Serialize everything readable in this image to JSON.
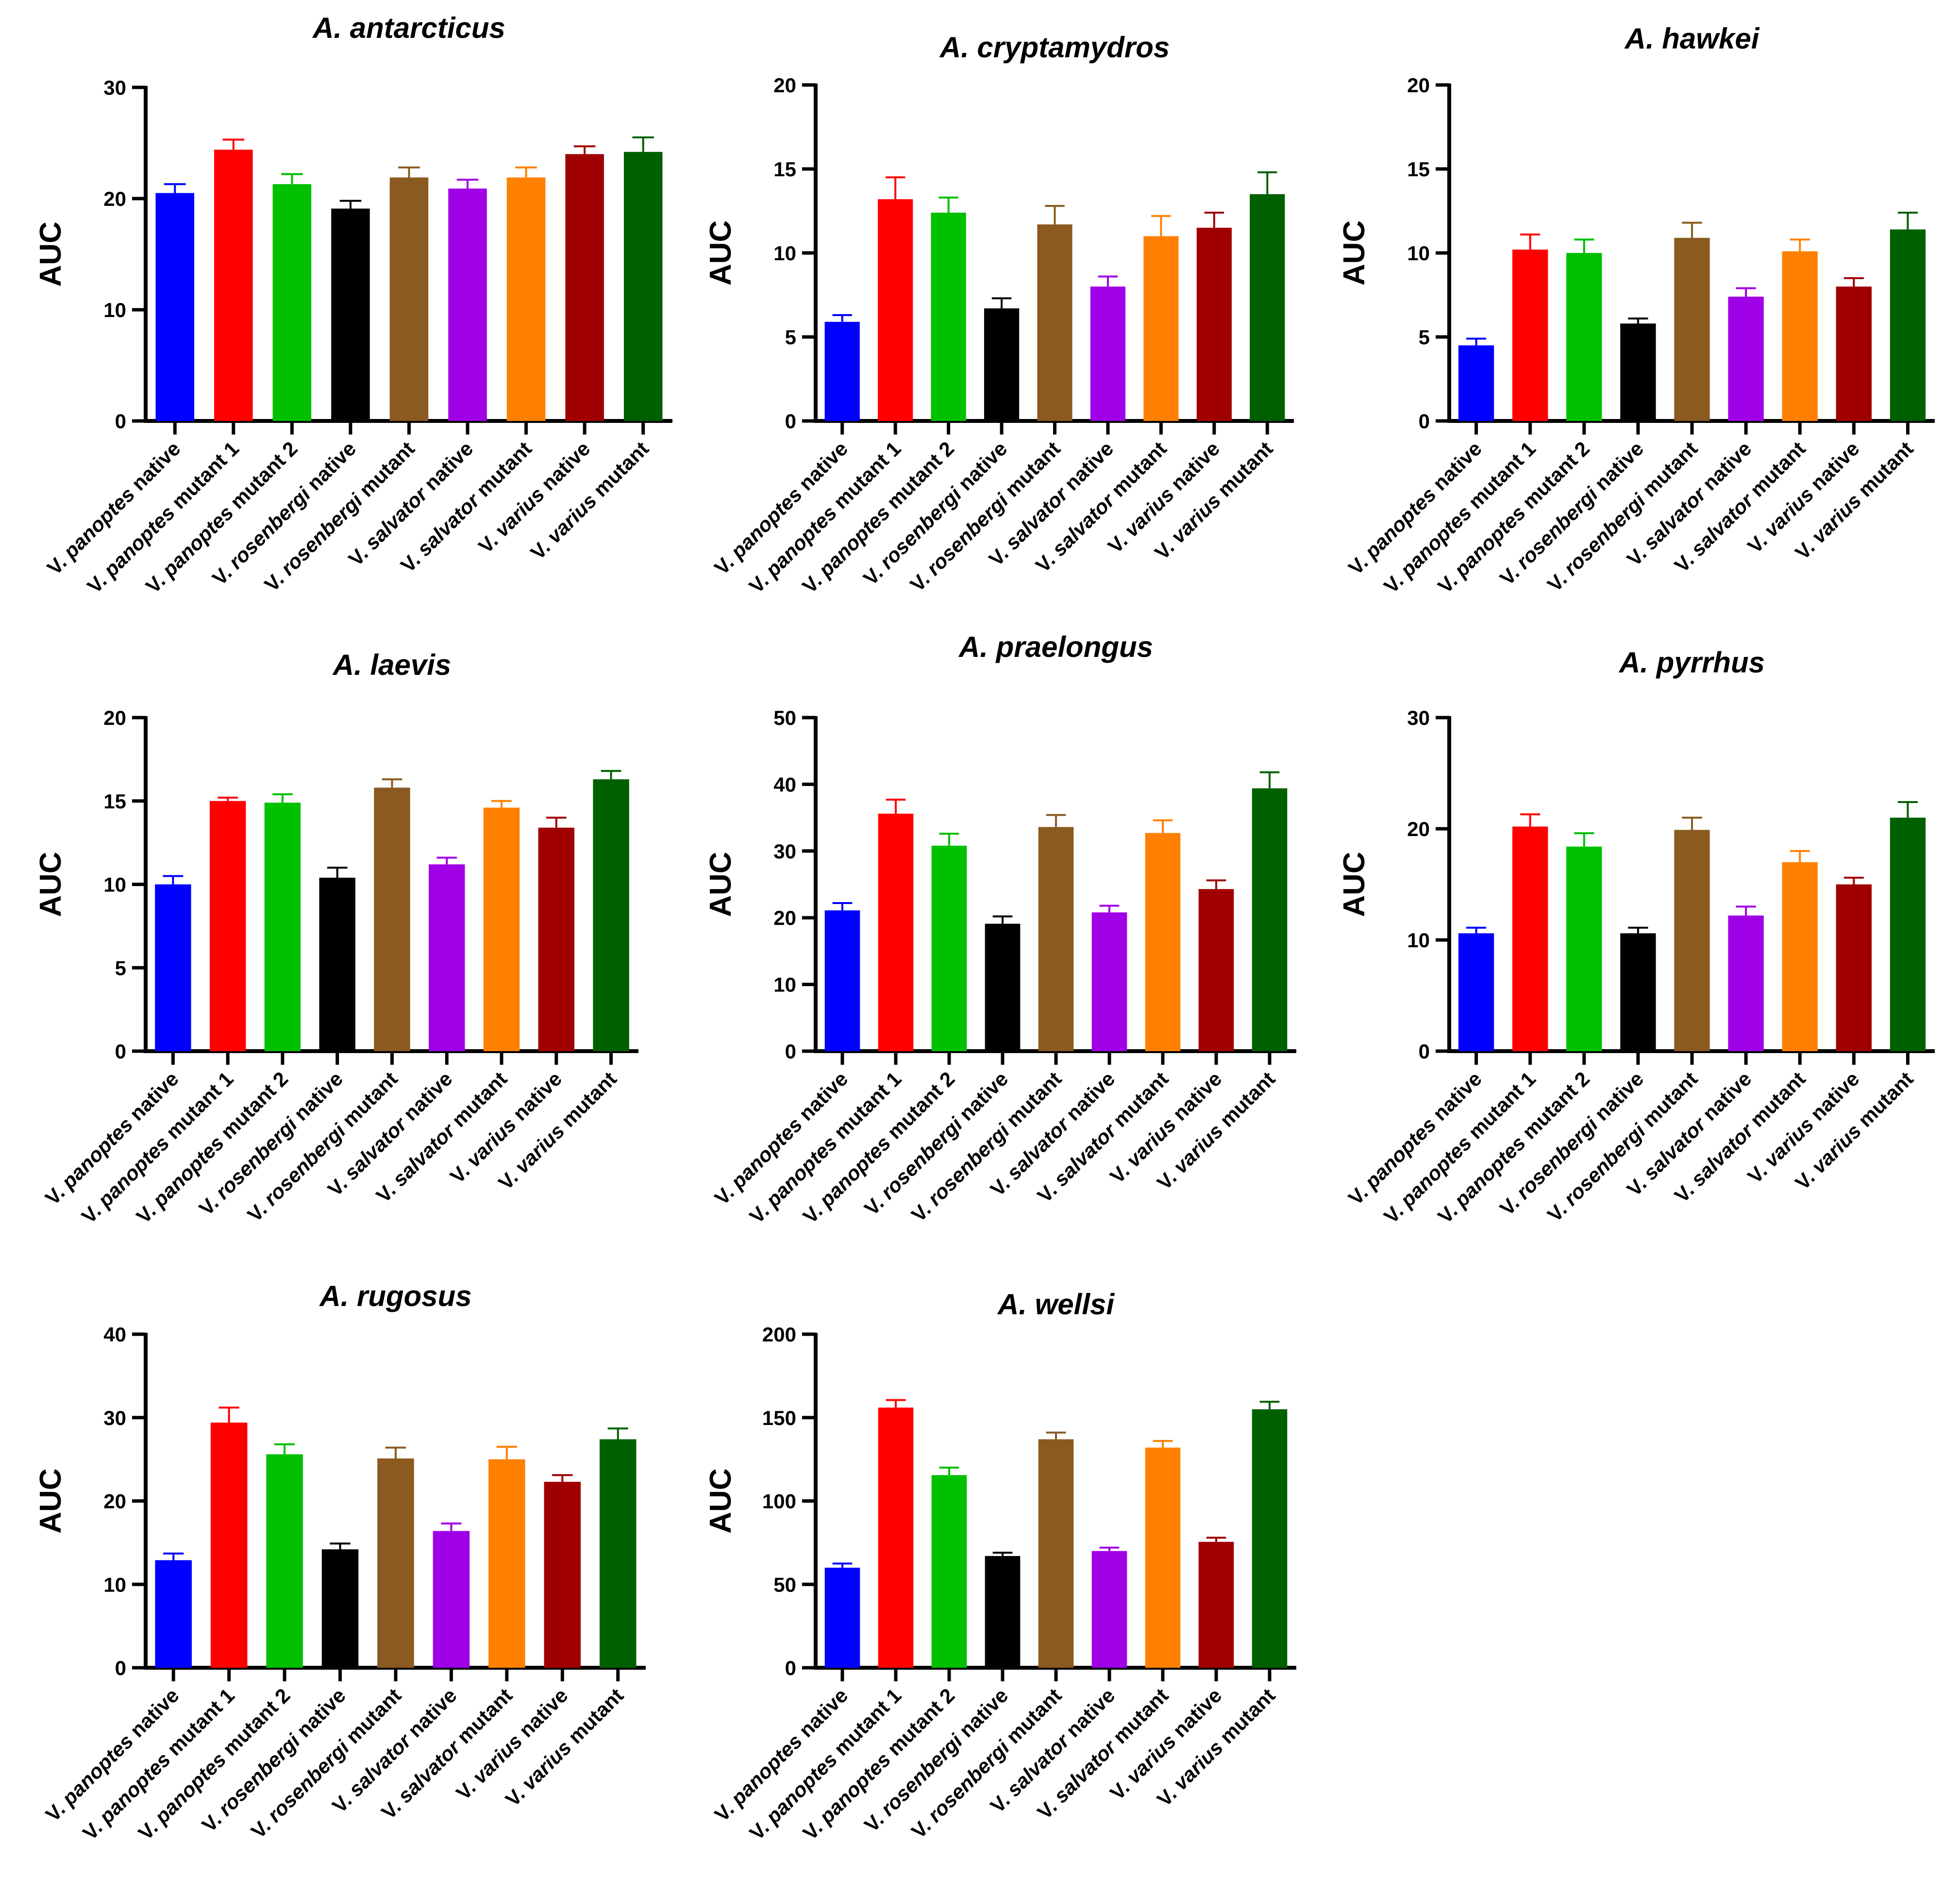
{
  "figure": {
    "categories": [
      {
        "genus": "V.",
        "species": "panoptes",
        "suffix": "native"
      },
      {
        "genus": "V.",
        "species": "panoptes",
        "suffix": "mutant 1"
      },
      {
        "genus": "V.",
        "species": "panoptes",
        "suffix": "mutant 2"
      },
      {
        "genus": "V.",
        "species": "rosenbergi",
        "suffix": "native"
      },
      {
        "genus": "V.",
        "species": "rosenbergi",
        "suffix": "mutant"
      },
      {
        "genus": "V.",
        "species": "salvator",
        "suffix": "native"
      },
      {
        "genus": "V.",
        "species": "salvator",
        "suffix": "mutant"
      },
      {
        "genus": "V.",
        "species": "varius",
        "suffix": "native"
      },
      {
        "genus": "V.",
        "species": "varius",
        "suffix": "mutant"
      }
    ],
    "colors": [
      "#0000ff",
      "#ff0000",
      "#00c000",
      "#000000",
      "#8b5a20",
      "#a000e6",
      "#ff8000",
      "#a00000",
      "#006000"
    ],
    "ylabel": "AUC"
  },
  "chart_data": [
    {
      "type": "bar",
      "title": "A. antarcticus",
      "ylabel": "AUC",
      "ylim": [
        0,
        30
      ],
      "yticks": [
        0,
        10,
        20,
        30
      ],
      "categories": [
        "V. panoptes native",
        "V. panoptes mutant 1",
        "V. panoptes mutant 2",
        "V. rosenbergi native",
        "V. rosenbergi mutant",
        "V. salvator native",
        "V. salvator mutant",
        "V. varius native",
        "V. varius mutant"
      ],
      "values": [
        20.5,
        24.4,
        21.3,
        19.1,
        21.9,
        20.9,
        21.9,
        24.0,
        24.2
      ],
      "errors": [
        0.8,
        0.9,
        0.9,
        0.7,
        0.9,
        0.8,
        0.9,
        0.7,
        1.3
      ]
    },
    {
      "type": "bar",
      "title": "A. cryptamydros",
      "ylabel": "AUC",
      "ylim": [
        0,
        20
      ],
      "yticks": [
        0,
        5,
        10,
        15,
        20
      ],
      "categories": [
        "V. panoptes native",
        "V. panoptes mutant 1",
        "V. panoptes mutant 2",
        "V. rosenbergi native",
        "V. rosenbergi mutant",
        "V. salvator native",
        "V. salvator mutant",
        "V. varius native",
        "V. varius mutant"
      ],
      "values": [
        5.9,
        13.2,
        12.4,
        6.7,
        11.7,
        8.0,
        11.0,
        11.5,
        13.5
      ],
      "errors": [
        0.4,
        1.3,
        0.9,
        0.6,
        1.1,
        0.6,
        1.2,
        0.9,
        1.3
      ]
    },
    {
      "type": "bar",
      "title": "A. hawkei",
      "ylabel": "AUC",
      "ylim": [
        0,
        20
      ],
      "yticks": [
        0,
        5,
        10,
        15,
        20
      ],
      "categories": [
        "V. panoptes native",
        "V. panoptes mutant 1",
        "V. panoptes mutant 2",
        "V. rosenbergi native",
        "V. rosenbergi mutant",
        "V. salvator native",
        "V. salvator mutant",
        "V. varius native",
        "V. varius mutant"
      ],
      "values": [
        4.5,
        10.2,
        10.0,
        5.8,
        10.9,
        7.4,
        10.1,
        8.0,
        11.4
      ],
      "errors": [
        0.4,
        0.9,
        0.8,
        0.3,
        0.9,
        0.5,
        0.7,
        0.5,
        1.0
      ]
    },
    {
      "type": "bar",
      "title": "A. laevis",
      "ylabel": "AUC",
      "ylim": [
        0,
        20
      ],
      "yticks": [
        0,
        5,
        10,
        15,
        20
      ],
      "categories": [
        "V. panoptes native",
        "V. panoptes mutant 1",
        "V. panoptes mutant 2",
        "V. rosenbergi native",
        "V. rosenbergi mutant",
        "V. salvator native",
        "V. salvator mutant",
        "V. varius native",
        "V. varius mutant"
      ],
      "values": [
        10.0,
        15.0,
        14.9,
        10.4,
        15.8,
        11.2,
        14.6,
        13.4,
        16.3
      ],
      "errors": [
        0.5,
        0.2,
        0.5,
        0.6,
        0.5,
        0.4,
        0.4,
        0.6,
        0.5
      ]
    },
    {
      "type": "bar",
      "title": "A. praelongus",
      "ylabel": "AUC",
      "ylim": [
        0,
        50
      ],
      "yticks": [
        0,
        10,
        20,
        30,
        40,
        50
      ],
      "categories": [
        "V. panoptes native",
        "V. panoptes mutant 1",
        "V. panoptes mutant 2",
        "V. rosenbergi native",
        "V. rosenbergi mutant",
        "V. salvator native",
        "V. salvator mutant",
        "V. varius native",
        "V. varius mutant"
      ],
      "values": [
        21.1,
        35.6,
        30.8,
        19.1,
        33.6,
        20.8,
        32.7,
        24.3,
        39.4
      ],
      "errors": [
        1.1,
        2.1,
        1.8,
        1.1,
        1.8,
        1.0,
        1.9,
        1.3,
        2.4
      ]
    },
    {
      "type": "bar",
      "title": "A. pyrrhus",
      "ylabel": "AUC",
      "ylim": [
        0,
        30
      ],
      "yticks": [
        0,
        10,
        20,
        30
      ],
      "categories": [
        "V. panoptes native",
        "V. panoptes mutant 1",
        "V. panoptes mutant 2",
        "V. rosenbergi native",
        "V. rosenbergi mutant",
        "V. salvator native",
        "V. salvator mutant",
        "V. varius native",
        "V. varius mutant"
      ],
      "values": [
        10.6,
        20.2,
        18.4,
        10.6,
        19.9,
        12.2,
        17.0,
        15.0,
        21.0
      ],
      "errors": [
        0.5,
        1.1,
        1.2,
        0.5,
        1.1,
        0.8,
        1.0,
        0.6,
        1.4
      ]
    },
    {
      "type": "bar",
      "title": "A. rugosus",
      "ylabel": "AUC",
      "ylim": [
        0,
        40
      ],
      "yticks": [
        0,
        10,
        20,
        30,
        40
      ],
      "categories": [
        "V. panoptes native",
        "V. panoptes mutant 1",
        "V. panoptes mutant 2",
        "V. rosenbergi native",
        "V. rosenbergi mutant",
        "V. salvator native",
        "V. salvator mutant",
        "V. varius native",
        "V. varius mutant"
      ],
      "values": [
        12.9,
        29.4,
        25.6,
        14.2,
        25.1,
        16.4,
        25.0,
        22.3,
        27.4
      ],
      "errors": [
        0.8,
        1.8,
        1.2,
        0.7,
        1.3,
        0.9,
        1.5,
        0.8,
        1.3
      ]
    },
    {
      "type": "bar",
      "title": "A. wellsi",
      "ylabel": "AUC",
      "ylim": [
        0,
        200
      ],
      "yticks": [
        0,
        50,
        100,
        150,
        200
      ],
      "categories": [
        "V. panoptes native",
        "V. panoptes mutant 1",
        "V. panoptes mutant 2",
        "V. rosenbergi native",
        "V. rosenbergi mutant",
        "V. salvator native",
        "V. salvator mutant",
        "V. varius native",
        "V. varius mutant"
      ],
      "values": [
        60.0,
        156.0,
        115.5,
        67.0,
        137.0,
        70.0,
        132.0,
        75.5,
        155.0
      ],
      "errors": [
        2.5,
        4.5,
        4.5,
        2.0,
        4.0,
        2.0,
        4.0,
        2.5,
        4.5
      ]
    }
  ]
}
